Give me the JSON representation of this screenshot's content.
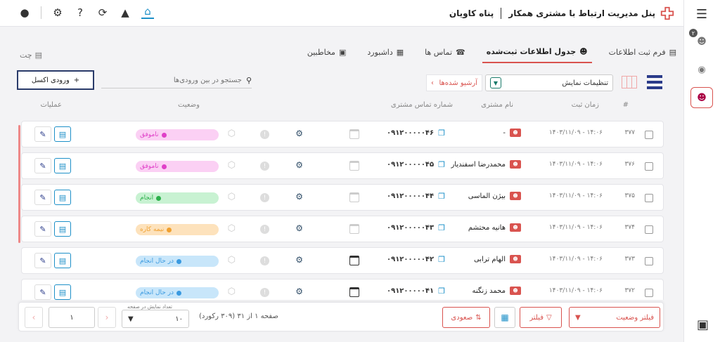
{
  "header": {
    "title": "پنل مدیریت ارتباط با مشتری همکار",
    "company": "پناه کاویان"
  },
  "chat_label": "چت",
  "tabs": [
    {
      "label": "فرم ثبت اطلاعات"
    },
    {
      "label": "جدول اطلاعات ثبت‌شده"
    },
    {
      "label": "تماس ها"
    },
    {
      "label": "داشبورد"
    },
    {
      "label": "مخاطبین"
    }
  ],
  "sidebar": {
    "badge": "۲"
  },
  "toolbar": {
    "excel_label": "ورودی اکسل",
    "search_placeholder": "جستجو در بین ورودی‌ها",
    "archive_label": "آرشیو شده‌ها",
    "display_settings": "تنظیمات نمایش"
  },
  "table": {
    "columns": {
      "num": "#",
      "time": "زمان ثبت",
      "name": "نام مشتری",
      "phone": "شماره تماس مشتری",
      "status": "وضعیت",
      "actions": "عملیات"
    },
    "rows": [
      {
        "num": "۳۷۷",
        "time": "۱۴۰۳/۱۱/۰۹ - ۱۴:۰۶",
        "name": "-",
        "phone": "۰۹۱۲۰۰۰۰۰۴۶",
        "status": "ناموفق",
        "status_color": "#e040c8",
        "status_bg": "#fbd0f4",
        "cal_dark": false
      },
      {
        "num": "۳۷۶",
        "time": "۱۴۰۳/۱۱/۰۹ - ۱۴:۰۶",
        "name": "محمدرضا اسفندیار",
        "phone": "۰۹۱۲۰۰۰۰۰۴۵",
        "status": "ناموفق",
        "status_color": "#e040c8",
        "status_bg": "#fbd0f4",
        "cal_dark": false
      },
      {
        "num": "۳۷۵",
        "time": "۱۴۰۳/۱۱/۰۹ - ۱۴:۰۶",
        "name": "بیژن الماسی",
        "phone": "۰۹۱۲۰۰۰۰۰۴۴",
        "status": "انجام",
        "status_color": "#2bb04a",
        "status_bg": "#c8f2d2",
        "cal_dark": false
      },
      {
        "num": "۳۷۴",
        "time": "۱۴۰۳/۱۱/۰۹ - ۱۴:۰۶",
        "name": "هانیه محتشم",
        "phone": "۰۹۱۲۰۰۰۰۰۴۳",
        "status": "نیمه کاره",
        "status_color": "#f0a030",
        "status_bg": "#fde2bc",
        "cal_dark": false
      },
      {
        "num": "۳۷۳",
        "time": "۱۴۰۳/۱۱/۰۹ - ۱۴:۰۶",
        "name": "الهام ترابی",
        "phone": "۰۹۱۲۰۰۰۰۰۴۲",
        "status": "در حال انجام",
        "status_color": "#3a9ae0",
        "status_bg": "#c8e6fa",
        "cal_dark": true
      },
      {
        "num": "۳۷۲",
        "time": "۱۴۰۳/۱۱/۰۹ - ۱۴:۰۶",
        "name": "محمد زنگنه",
        "phone": "۰۹۱۲۰۰۰۰۰۴۱",
        "status": "در حال انجام",
        "status_color": "#3a9ae0",
        "status_bg": "#c8e6fa",
        "cal_dark": true
      }
    ]
  },
  "footer": {
    "status_filter": "فیلتر وضعیت",
    "filter": "فیلتر",
    "sort": "صعودی",
    "page_info": "صفحه ۱ از ۳۱ (۳۰۹ رکورد)",
    "per_page_label": "تعداد نمایش در صفحه",
    "per_page": "۱۰",
    "page": "۱"
  },
  "colors": {
    "accent": "#d9534f",
    "primary": "#2a3b8a",
    "link": "#1e90c8"
  }
}
